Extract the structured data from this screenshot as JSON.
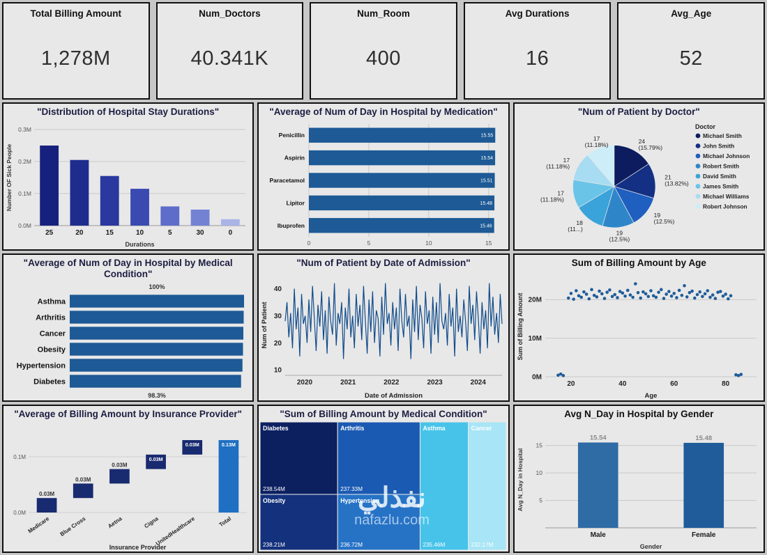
{
  "kpis": [
    {
      "title": "Total Billing Amount",
      "value": "1,278M"
    },
    {
      "title": "Num_Doctors",
      "value": "40.341K"
    },
    {
      "title": "Num_Room",
      "value": "400"
    },
    {
      "title": "Avg Durations",
      "value": "16"
    },
    {
      "title": "Avg_Age",
      "value": "52"
    }
  ],
  "watermark": {
    "arabic": "نفذلي",
    "domain": "nafazlu.com"
  },
  "chart_data": [
    {
      "type": "bar",
      "title": "\"Distribution of Hospital Stay Durations\"",
      "categories": [
        "25",
        "20",
        "15",
        "10",
        "5",
        "30",
        "0"
      ],
      "values": [
        0.25,
        0.205,
        0.155,
        0.115,
        0.06,
        0.05,
        0.02
      ],
      "colors": [
        "#16217e",
        "#1e2c8e",
        "#2a389f",
        "#3b4ab1",
        "#5f6dca",
        "#7482d4",
        "#abb4e6"
      ],
      "ylim": [
        0,
        0.3
      ],
      "ytick_values": [
        0,
        0.1,
        0.2,
        0.3
      ],
      "ytick_labels": [
        "0.0M",
        "0.1M",
        "0.2M",
        "0.3M"
      ],
      "xlabel": "Durations",
      "ylabel": "Number OF Sick People"
    },
    {
      "type": "hbar",
      "title": "\"Average of Num of Day in Hospital by Medication\"",
      "categories": [
        "Penicillin",
        "Aspirin",
        "Paracetamol",
        "Lipitor",
        "Ibuprofen"
      ],
      "values": [
        15.55,
        15.54,
        15.51,
        15.48,
        15.46
      ],
      "value_labels": [
        "15.55",
        "15.54",
        "15.51",
        "15.48",
        "15.46"
      ],
      "bar_color": "#1d5a96",
      "xlim": [
        0,
        16
      ],
      "xtick_values": [
        0,
        5,
        10,
        15
      ],
      "xtick_labels": [
        "0",
        "5",
        "10",
        "15"
      ]
    },
    {
      "type": "pie",
      "title": "\"Num of Patient by Doctor\"",
      "legend_title": "Doctor",
      "slices": [
        {
          "name": "Michael Smith",
          "value": 24,
          "label": "24 (15.79%)",
          "color": "#0c1c5e"
        },
        {
          "name": "John Smith",
          "value": 21,
          "label": "21 (13.82%)",
          "color": "#143084"
        },
        {
          "name": "Michael Johnson",
          "value": 19,
          "label": "19 (12.5%)",
          "color": "#1f5fbf"
        },
        {
          "name": "Robert Smith",
          "value": 19,
          "label": "19 (12.5%)",
          "color": "#2e86c9"
        },
        {
          "name": "David Smith",
          "value": 18,
          "label": "18 (11...)",
          "color": "#3aa3d9"
        },
        {
          "name": "James Smith",
          "value": 17,
          "label": "17 (11.18%)",
          "color": "#6ac4e8"
        },
        {
          "name": "Michael Williams",
          "value": 17,
          "label": "17 (11.18%)",
          "color": "#a7dcf2"
        },
        {
          "name": "Robert Johnson",
          "value": 17,
          "label": "17 (11.18%)",
          "color": "#cdeef9"
        }
      ]
    },
    {
      "type": "hbar",
      "title": "\"Average of Num of Day in Hospital by Medical Condition\"",
      "categories": [
        "Asthma",
        "Arthritis",
        "Cancer",
        "Obesity",
        "Hypertension",
        "Diabetes"
      ],
      "values": [
        100,
        99.8,
        99.6,
        99.4,
        99.1,
        98.3
      ],
      "bar_color": "#1d5a96",
      "xlim": [
        0,
        100
      ],
      "annotations": {
        "top": "100%",
        "bottom": "98.3%"
      }
    },
    {
      "type": "line",
      "title": "\"Num of Patient by Date of Admission\"",
      "ylabel": "Num of Patient",
      "xlabel": "Date of Admission",
      "color": "#0f4a8a",
      "ylim": [
        8,
        45
      ],
      "ytick_values": [
        10,
        20,
        30,
        40
      ],
      "ytick_labels": [
        "10",
        "20",
        "30",
        "40"
      ],
      "xticks": [
        {
          "pos": 0.09,
          "label": "2020"
        },
        {
          "pos": 0.29,
          "label": "2021"
        },
        {
          "pos": 0.49,
          "label": "2022"
        },
        {
          "pos": 0.69,
          "label": "2023"
        },
        {
          "pos": 0.89,
          "label": "2024"
        }
      ],
      "values": [
        28,
        35,
        22,
        31,
        18,
        40,
        25,
        33,
        15,
        38,
        27,
        30,
        20,
        36,
        24,
        41,
        29,
        17,
        34,
        26,
        39,
        21,
        32,
        16,
        37,
        28,
        23,
        42,
        19,
        31,
        27,
        35,
        14,
        33,
        25,
        40,
        22,
        30,
        18,
        38,
        26,
        34,
        21,
        41,
        28,
        16,
        36,
        24,
        39,
        20,
        32,
        29,
        15,
        37,
        23,
        42,
        27,
        31,
        19,
        35,
        25,
        33,
        17,
        40,
        28,
        22,
        38,
        26,
        30,
        14,
        36,
        24,
        41,
        21,
        34,
        29,
        18,
        39,
        27,
        32,
        16,
        37,
        23,
        35,
        20,
        42,
        28,
        25,
        31,
        19,
        38,
        26,
        33,
        15,
        40,
        24,
        30,
        22,
        36,
        28,
        17,
        41,
        27,
        34,
        21,
        39,
        29,
        16,
        35,
        25,
        32,
        18,
        42,
        26,
        37,
        23,
        31,
        20,
        38,
        27
      ]
    },
    {
      "type": "scatter",
      "title": "Sum of Billing Amount by Age",
      "ylabel": "Sum of Billing Amount",
      "xlabel": "Age",
      "color": "#1e5c99",
      "xlim": [
        10,
        92
      ],
      "ylim": [
        0,
        26
      ],
      "xtick_values": [
        20,
        40,
        60,
        80
      ],
      "xtick_labels": [
        "20",
        "40",
        "60",
        "80"
      ],
      "ytick_values": [
        0,
        10,
        20
      ],
      "ytick_labels": [
        "0M",
        "10M",
        "20M"
      ],
      "points": [
        [
          15,
          0.4
        ],
        [
          16,
          0.7
        ],
        [
          17,
          0.3
        ],
        [
          19,
          20.4
        ],
        [
          20,
          21.6
        ],
        [
          21,
          20.1
        ],
        [
          22,
          22.3
        ],
        [
          23,
          21.0
        ],
        [
          24,
          20.6
        ],
        [
          25,
          22.0
        ],
        [
          26,
          21.4
        ],
        [
          27,
          20.2
        ],
        [
          28,
          22.6
        ],
        [
          29,
          21.1
        ],
        [
          30,
          20.7
        ],
        [
          31,
          22.2
        ],
        [
          32,
          21.5
        ],
        [
          33,
          20.3
        ],
        [
          34,
          21.9
        ],
        [
          35,
          22.5
        ],
        [
          36,
          20.8
        ],
        [
          37,
          21.3
        ],
        [
          38,
          20.5
        ],
        [
          39,
          22.1
        ],
        [
          40,
          21.7
        ],
        [
          41,
          20.9
        ],
        [
          42,
          22.4
        ],
        [
          43,
          21.2
        ],
        [
          44,
          20.6
        ],
        [
          45,
          24.1
        ],
        [
          46,
          21.8
        ],
        [
          47,
          20.4
        ],
        [
          48,
          22.0
        ],
        [
          49,
          21.5
        ],
        [
          50,
          20.8
        ],
        [
          51,
          22.3
        ],
        [
          52,
          21.0
        ],
        [
          53,
          20.6
        ],
        [
          54,
          21.9
        ],
        [
          55,
          22.6
        ],
        [
          56,
          20.3
        ],
        [
          57,
          21.4
        ],
        [
          58,
          22.1
        ],
        [
          59,
          20.9
        ],
        [
          60,
          21.6
        ],
        [
          61,
          20.5
        ],
        [
          62,
          22.4
        ],
        [
          63,
          21.1
        ],
        [
          64,
          23.6
        ],
        [
          65,
          20.7
        ],
        [
          66,
          21.8
        ],
        [
          67,
          22.2
        ],
        [
          68,
          20.4
        ],
        [
          69,
          21.3
        ],
        [
          70,
          22.0
        ],
        [
          71,
          20.8
        ],
        [
          72,
          21.5
        ],
        [
          73,
          22.3
        ],
        [
          74,
          20.6
        ],
        [
          75,
          21.2
        ],
        [
          76,
          20.3
        ],
        [
          77,
          21.9
        ],
        [
          78,
          22.1
        ],
        [
          79,
          20.9
        ],
        [
          80,
          21.4
        ],
        [
          81,
          20.2
        ],
        [
          82,
          21.0
        ],
        [
          84,
          0.5
        ],
        [
          85,
          0.3
        ],
        [
          86,
          0.6
        ]
      ]
    },
    {
      "type": "waterfall",
      "title": "\"Average of Billing Amount by Insurance Provider\"",
      "xlabel": "Insurance Provider",
      "ylim": [
        0,
        0.145
      ],
      "ytick_values": [
        0,
        0.1
      ],
      "ytick_labels": [
        "0.0M",
        "0.1M"
      ],
      "increment_color": "#182a70",
      "total_color": "#1f6fc2",
      "segments": [
        {
          "category": "Medicare",
          "from": 0,
          "to": 0.026,
          "label": "0.03M",
          "label_pos": "above"
        },
        {
          "category": "Blue Cross",
          "from": 0.026,
          "to": 0.052,
          "label": "0.03M",
          "label_pos": "above"
        },
        {
          "category": "Aetna",
          "from": 0.052,
          "to": 0.078,
          "label": "0.03M",
          "label_pos": "above"
        },
        {
          "category": "Cigna",
          "from": 0.078,
          "to": 0.104,
          "label": "0.03M",
          "label_pos": "inside"
        },
        {
          "category": "UnitedHealthcare",
          "from": 0.104,
          "to": 0.13,
          "label": "0.03M",
          "label_pos": "inside"
        },
        {
          "category": "Total",
          "from": 0,
          "to": 0.13,
          "label": "0.13M",
          "label_pos": "inside",
          "total": true
        }
      ]
    },
    {
      "type": "treemap",
      "title": "\"Sum of Billing Amount by Medical Condition\"",
      "tiles": [
        {
          "name": "Diabetes",
          "value": "238.54M",
          "color": "#0c2060",
          "x": 0,
          "y": 0,
          "w": 0.315,
          "h": 0.565
        },
        {
          "name": "Arthritis",
          "value": "237.33M",
          "color": "#1b5ab2",
          "x": 0.315,
          "y": 0,
          "w": 0.335,
          "h": 0.565
        },
        {
          "name": "Asthma",
          "value": "235.46M",
          "color": "#47c3ea",
          "x": 0.65,
          "y": 0,
          "w": 0.196,
          "h": 1
        },
        {
          "name": "Cancer",
          "value": "232.17M",
          "color": "#a8e5f6",
          "x": 0.846,
          "y": 0,
          "w": 0.154,
          "h": 1
        },
        {
          "name": "Obesity",
          "value": "238.21M",
          "color": "#13317c",
          "x": 0,
          "y": 0.565,
          "w": 0.315,
          "h": 0.435
        },
        {
          "name": "Hypertension",
          "value": "236.72M",
          "color": "#2673c6",
          "x": 0.315,
          "y": 0.565,
          "w": 0.335,
          "h": 0.435
        }
      ]
    },
    {
      "type": "bar",
      "title": "Avg N_Day in Hospital by Gender",
      "categories": [
        "Male",
        "Female"
      ],
      "values": [
        15.54,
        15.48
      ],
      "value_labels": [
        "15.54",
        "15.48"
      ],
      "value_label_color": "#8a8a8a",
      "colors": [
        "#2f6ba5",
        "#1f5c99"
      ],
      "ylim": [
        0,
        17.5
      ],
      "ytick_values": [
        5,
        10,
        15
      ],
      "ytick_labels": [
        "5",
        "10",
        "15"
      ],
      "xlabel": "Gender",
      "ylabel": "Avg N_Day in Hospital",
      "bar_width_frac": 0.38
    }
  ]
}
